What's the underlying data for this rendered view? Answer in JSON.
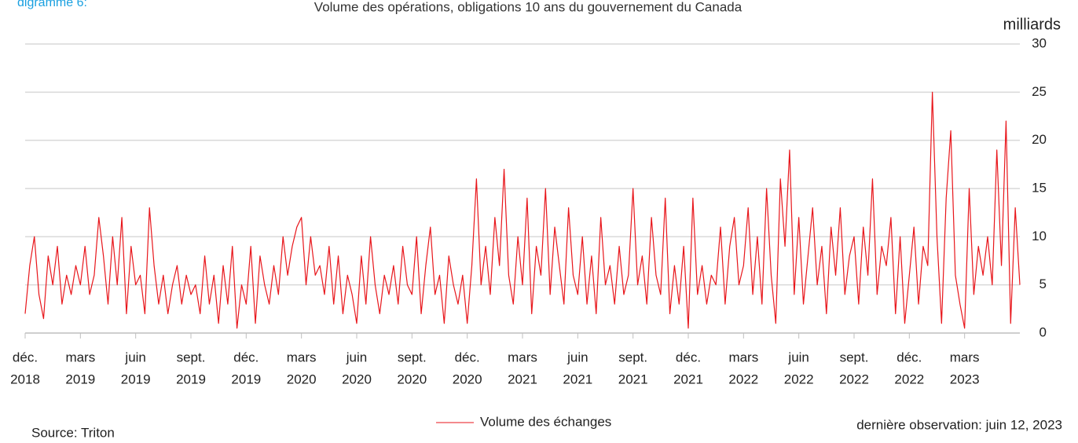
{
  "chart_data": {
    "type": "line",
    "figure_label": "digramme 6:",
    "title": "Volume des opérations, obligations 10 ans du gouvernement du Canada",
    "y_unit": "milliards",
    "source": "Source: Triton",
    "note": "dernière observation: juin 12, 2023",
    "ylim": [
      0,
      30
    ],
    "yticks": [
      0,
      5,
      10,
      15,
      20,
      25,
      30
    ],
    "grid": true,
    "xlim": [
      0,
      216
    ],
    "xticks": [
      {
        "value": 0,
        "label": [
          "déc.",
          "2018"
        ]
      },
      {
        "value": 12,
        "label": [
          "mars",
          "2019"
        ]
      },
      {
        "value": 24,
        "label": [
          "juin",
          "2019"
        ]
      },
      {
        "value": 36,
        "label": [
          "sept.",
          "2019"
        ]
      },
      {
        "value": 48,
        "label": [
          "déc.",
          "2019"
        ]
      },
      {
        "value": 60,
        "label": [
          "mars",
          "2020"
        ]
      },
      {
        "value": 72,
        "label": [
          "juin",
          "2020"
        ]
      },
      {
        "value": 84,
        "label": [
          "sept.",
          "2020"
        ]
      },
      {
        "value": 96,
        "label": [
          "déc.",
          "2020"
        ]
      },
      {
        "value": 108,
        "label": [
          "mars",
          "2021"
        ]
      },
      {
        "value": 120,
        "label": [
          "juin",
          "2021"
        ]
      },
      {
        "value": 132,
        "label": [
          "sept.",
          "2021"
        ]
      },
      {
        "value": 144,
        "label": [
          "déc.",
          "2021"
        ]
      },
      {
        "value": 156,
        "label": [
          "mars",
          "2022"
        ]
      },
      {
        "value": 168,
        "label": [
          "juin",
          "2022"
        ]
      },
      {
        "value": 180,
        "label": [
          "sept.",
          "2022"
        ]
      },
      {
        "value": 192,
        "label": [
          "déc.",
          "2022"
        ]
      },
      {
        "value": 204,
        "label": [
          "mars",
          "2023"
        ]
      }
    ],
    "series": [
      {
        "name": "Volume des échanges",
        "color": "#e8161b",
        "values": [
          2,
          7,
          10,
          4,
          1.5,
          8,
          5,
          9,
          3,
          6,
          4,
          7,
          5,
          9,
          4,
          6,
          12,
          8,
          3,
          10,
          5,
          12,
          2,
          9,
          5,
          6,
          2,
          13,
          7,
          3,
          6,
          2,
          5,
          7,
          3,
          6,
          4,
          5,
          2,
          8,
          3,
          6,
          1,
          7,
          3,
          9,
          0.5,
          5,
          3,
          9,
          1,
          8,
          5,
          3,
          7,
          4,
          10,
          6,
          9,
          11,
          12,
          5,
          10,
          6,
          7,
          4,
          9,
          3,
          8,
          2,
          6,
          4,
          1,
          8,
          3,
          10,
          5,
          2,
          6,
          4,
          7,
          3,
          9,
          5,
          4,
          10,
          2,
          7,
          11,
          4,
          6,
          1,
          8,
          5,
          3,
          6,
          1,
          7,
          16,
          5,
          9,
          4,
          12,
          7,
          17,
          6,
          3,
          10,
          5,
          14,
          2,
          9,
          6,
          15,
          4,
          11,
          7,
          3,
          13,
          6,
          4,
          10,
          3,
          8,
          2,
          12,
          5,
          7,
          3,
          9,
          4,
          6,
          15,
          5,
          8,
          3,
          12,
          6,
          4,
          14,
          2,
          7,
          3,
          9,
          0.5,
          14,
          4,
          7,
          3,
          6,
          5,
          11,
          3,
          9,
          12,
          5,
          7,
          13,
          4,
          10,
          3,
          15,
          6,
          1,
          16,
          9,
          19,
          4,
          12,
          3,
          8,
          13,
          5,
          9,
          2,
          11,
          6,
          13,
          4,
          8,
          10,
          3,
          11,
          6,
          16,
          4,
          9,
          7,
          12,
          2,
          10,
          1,
          6,
          11,
          3,
          9,
          7,
          25,
          10,
          1,
          14,
          21,
          6,
          3,
          0.5,
          15,
          4,
          9,
          6,
          10,
          5,
          19,
          7,
          22,
          1,
          13,
          5
        ]
      }
    ]
  }
}
